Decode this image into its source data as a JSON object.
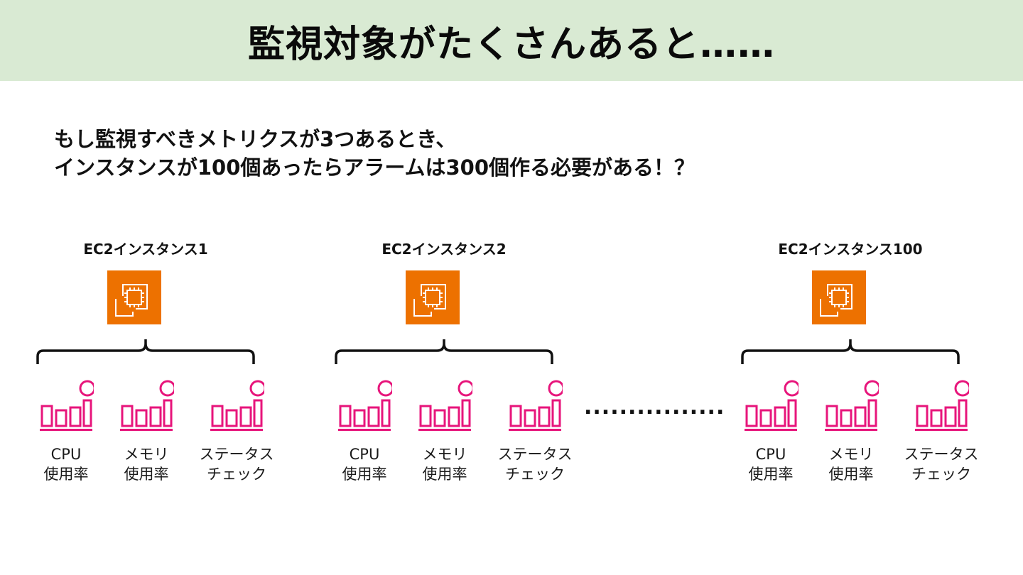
{
  "title": "監視対象がたくさんあると……",
  "intro": {
    "line1": "もし監視すべきメトリクスが3つあるとき、",
    "line2": "インスタンスが100個あったらアラームは300個作る必要がある！？"
  },
  "instances": [
    {
      "label": "EC2インスタンス1",
      "metrics": [
        {
          "label": "CPU\n使用率"
        },
        {
          "label": "メモリ\n使用率"
        },
        {
          "label": "ステータス\nチェック"
        }
      ]
    },
    {
      "label": "EC2インスタンス2",
      "metrics": [
        {
          "label": "CPU\n使用率"
        },
        {
          "label": "メモリ\n使用率"
        },
        {
          "label": "ステータス\nチェック"
        }
      ]
    },
    {
      "label": "EC2インスタンス100",
      "metrics": [
        {
          "label": "CPU\n使用率"
        },
        {
          "label": "メモリ\n使用率"
        },
        {
          "label": "ステータス\nチェック"
        }
      ]
    }
  ],
  "ellipsis": "................",
  "colors": {
    "title_bg": "#d9ead3",
    "ec2_orange": "#ed7100",
    "metric_pink": "#e7157b"
  },
  "icons": {
    "instance": "ec2-chip-icon",
    "metric": "cloudwatch-metric-icon"
  }
}
